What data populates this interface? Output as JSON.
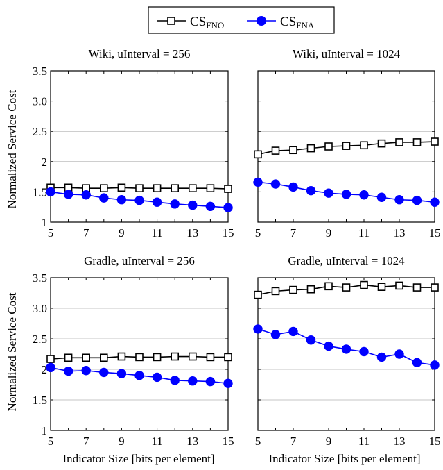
{
  "legend": {
    "placement": "top-center",
    "entries": [
      {
        "base": "CS",
        "sub": "FNO",
        "marker": "open-square",
        "color": "#000000"
      },
      {
        "base": "CS",
        "sub": "FNA",
        "marker": "filled-circle",
        "color": "#0000ff"
      }
    ]
  },
  "xlabel_text": "Indicator Size [bits per element]",
  "ylabel_text": "Normalized Service Cost",
  "chart_data": [
    {
      "type": "line",
      "title": "Wiki, uInterval = 256",
      "xlabel": "",
      "ylabel": "Normalized Service Cost",
      "x": [
        5,
        6,
        7,
        8,
        9,
        10,
        11,
        12,
        13,
        14,
        15
      ],
      "xticks": [
        "5",
        "7",
        "9",
        "11",
        "13",
        "15"
      ],
      "ylim": [
        1,
        3.5
      ],
      "yticks": [
        "1",
        "1.5",
        "2",
        "2.5",
        "3.0",
        "3.5"
      ],
      "grid": "horizontal",
      "series": [
        {
          "name": "CSFNO",
          "values": [
            1.57,
            1.57,
            1.56,
            1.56,
            1.57,
            1.56,
            1.56,
            1.56,
            1.56,
            1.56,
            1.55
          ]
        },
        {
          "name": "CSFNA",
          "values": [
            1.5,
            1.46,
            1.45,
            1.4,
            1.37,
            1.36,
            1.33,
            1.3,
            1.28,
            1.26,
            1.24
          ]
        }
      ]
    },
    {
      "type": "line",
      "title": "Wiki, uInterval = 1024",
      "xlabel": "",
      "ylabel": "",
      "x": [
        5,
        6,
        7,
        8,
        9,
        10,
        11,
        12,
        13,
        14,
        15
      ],
      "xticks": [
        "5",
        "7",
        "9",
        "11",
        "13",
        "15"
      ],
      "ylim": [
        1,
        3.5
      ],
      "yticks": [],
      "grid": "horizontal",
      "series": [
        {
          "name": "CSFNO",
          "values": [
            2.12,
            2.18,
            2.19,
            2.22,
            2.25,
            2.26,
            2.27,
            2.3,
            2.32,
            2.32,
            2.33
          ]
        },
        {
          "name": "CSFNA",
          "values": [
            1.66,
            1.63,
            1.58,
            1.52,
            1.48,
            1.46,
            1.45,
            1.41,
            1.37,
            1.36,
            1.33
          ]
        }
      ]
    },
    {
      "type": "line",
      "title": "Gradle, uInterval = 256",
      "xlabel": "Indicator Size [bits per element]",
      "ylabel": "Normalized Service Cost",
      "x": [
        5,
        6,
        7,
        8,
        9,
        10,
        11,
        12,
        13,
        14,
        15
      ],
      "xticks": [
        "5",
        "7",
        "9",
        "11",
        "13",
        "15"
      ],
      "ylim": [
        1,
        3.5
      ],
      "yticks": [
        "1",
        "1.5",
        "2",
        "2.5",
        "3.0",
        "3.5"
      ],
      "grid": "horizontal",
      "series": [
        {
          "name": "CSFNO",
          "values": [
            2.17,
            2.19,
            2.19,
            2.19,
            2.21,
            2.2,
            2.2,
            2.21,
            2.21,
            2.2,
            2.2
          ]
        },
        {
          "name": "CSFNA",
          "values": [
            2.03,
            1.97,
            1.98,
            1.95,
            1.93,
            1.9,
            1.87,
            1.82,
            1.81,
            1.8,
            1.77
          ]
        }
      ]
    },
    {
      "type": "line",
      "title": "Gradle, uInterval = 1024",
      "xlabel": "Indicator Size [bits per element]",
      "ylabel": "",
      "x": [
        5,
        6,
        7,
        8,
        9,
        10,
        11,
        12,
        13,
        14,
        15
      ],
      "xticks": [
        "5",
        "7",
        "9",
        "11",
        "13",
        "15"
      ],
      "ylim": [
        1,
        3.5
      ],
      "yticks": [],
      "grid": "horizontal",
      "series": [
        {
          "name": "CSFNO",
          "values": [
            3.22,
            3.28,
            3.3,
            3.31,
            3.36,
            3.34,
            3.38,
            3.35,
            3.37,
            3.34,
            3.34
          ]
        },
        {
          "name": "CSFNA",
          "values": [
            2.66,
            2.57,
            2.62,
            2.48,
            2.38,
            2.33,
            2.29,
            2.2,
            2.25,
            2.11,
            2.07
          ]
        }
      ]
    }
  ]
}
